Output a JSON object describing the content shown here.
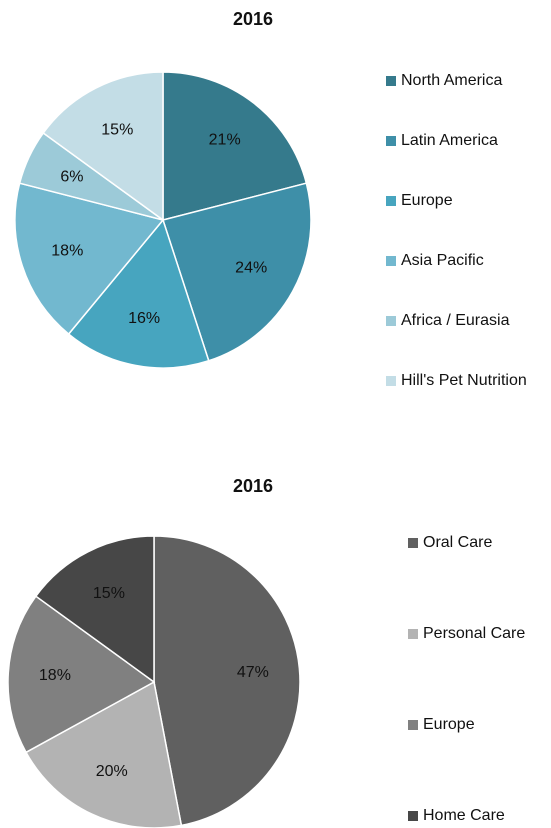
{
  "chart_data": [
    {
      "type": "pie",
      "title": "2016",
      "categories": [
        "North America",
        "Latin America",
        "Europe",
        "Asia Pacific",
        "Africa / Eurasia",
        "Hill's Pet Nutrition"
      ],
      "values": [
        21,
        24,
        16,
        18,
        6,
        15
      ],
      "value_labels": [
        "21%",
        "24%",
        "16%",
        "18%",
        "6%",
        "15%"
      ],
      "colors": [
        "#357a8c",
        "#3e8fa8",
        "#47a5bf",
        "#72b8cf",
        "#9ccad8",
        "#c3dde6"
      ],
      "legend": "right"
    },
    {
      "type": "pie",
      "title": "2016",
      "categories": [
        "Oral Care",
        "Personal Care",
        "Europe",
        "Home Care"
      ],
      "values": [
        47,
        20,
        18,
        15
      ],
      "value_labels": [
        "47%",
        "20%",
        "18%",
        "15%"
      ],
      "colors": [
        "#606060",
        "#b3b3b3",
        "#808080",
        "#474747"
      ],
      "legend": "right"
    }
  ]
}
